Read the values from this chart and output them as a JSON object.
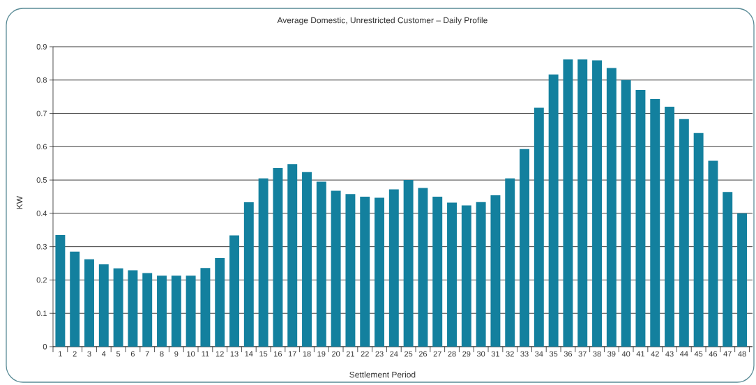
{
  "chart_data": {
    "type": "bar",
    "title": "Average Domestic, Unrestricted Customer – Daily Profile",
    "xlabel": "Settlement Period",
    "ylabel": "KW",
    "categories": [
      "1",
      "2",
      "3",
      "4",
      "5",
      "6",
      "7",
      "8",
      "9",
      "10",
      "11",
      "12",
      "13",
      "14",
      "15",
      "16",
      "17",
      "18",
      "19",
      "20",
      "21",
      "22",
      "23",
      "24",
      "25",
      "26",
      "27",
      "28",
      "29",
      "30",
      "31",
      "32",
      "33",
      "34",
      "35",
      "36",
      "37",
      "38",
      "39",
      "40",
      "41",
      "42",
      "43",
      "44",
      "45",
      "46",
      "47",
      "48"
    ],
    "values": [
      0.335,
      0.285,
      0.262,
      0.247,
      0.235,
      0.229,
      0.221,
      0.213,
      0.213,
      0.213,
      0.236,
      0.266,
      0.334,
      0.433,
      0.505,
      0.536,
      0.548,
      0.524,
      0.495,
      0.468,
      0.458,
      0.45,
      0.447,
      0.472,
      0.5,
      0.476,
      0.45,
      0.432,
      0.424,
      0.434,
      0.454,
      0.505,
      0.593,
      0.717,
      0.817,
      0.862,
      0.862,
      0.859,
      0.836,
      0.8,
      0.77,
      0.743,
      0.72,
      0.683,
      0.641,
      0.558,
      0.464,
      0.4
    ],
    "color": "#13809e",
    "ylim": [
      0,
      0.9
    ],
    "yticks": [
      0,
      0.1,
      0.2,
      0.3,
      0.4,
      0.5,
      0.6,
      0.7,
      0.8,
      0.9
    ],
    "grid": "y"
  }
}
